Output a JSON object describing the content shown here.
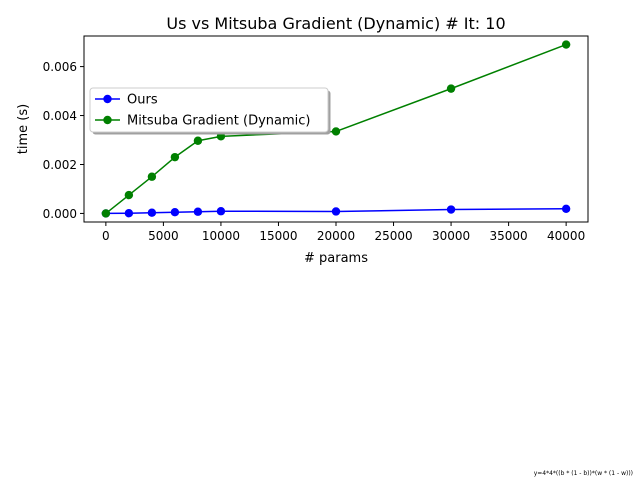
{
  "chart_data": {
    "type": "line",
    "title": "Us vs Mitsuba Gradient (Dynamic) # It: 10",
    "xlabel": "# params",
    "ylabel": "time (s)",
    "xlim": [
      -1900,
      41900
    ],
    "ylim": [
      -0.00035,
      0.00725
    ],
    "x_ticks": [
      0,
      5000,
      10000,
      15000,
      20000,
      25000,
      30000,
      35000,
      40000
    ],
    "y_ticks": [
      0.0,
      0.002,
      0.004,
      0.006
    ],
    "x_tick_labels": [
      "0",
      "5000",
      "10000",
      "15000",
      "20000",
      "25000",
      "30000",
      "35000",
      "40000"
    ],
    "y_tick_labels": [
      "0.000",
      "0.002",
      "0.004",
      "0.006"
    ],
    "grid": false,
    "legend_position": "upper-left",
    "series": [
      {
        "name": "Ours",
        "color": "#0000ff",
        "x": [
          0,
          2000,
          4000,
          6000,
          8000,
          10000,
          20000,
          30000,
          40000
        ],
        "y": [
          0.0,
          1e-05,
          3e-05,
          5e-05,
          7e-05,
          9e-05,
          8e-05,
          0.00016,
          0.00019
        ]
      },
      {
        "name": "Mitsuba Gradient (Dynamic)",
        "color": "#008000",
        "x": [
          0,
          2000,
          4000,
          6000,
          8000,
          10000,
          20000,
          30000,
          40000
        ],
        "y": [
          0.0,
          0.00075,
          0.0015,
          0.0023,
          0.00297,
          0.00315,
          0.00335,
          0.0051,
          0.0069
        ]
      }
    ],
    "footnote": "y=4*4*((b * (1 - b))*(w * (1 - w)))"
  }
}
